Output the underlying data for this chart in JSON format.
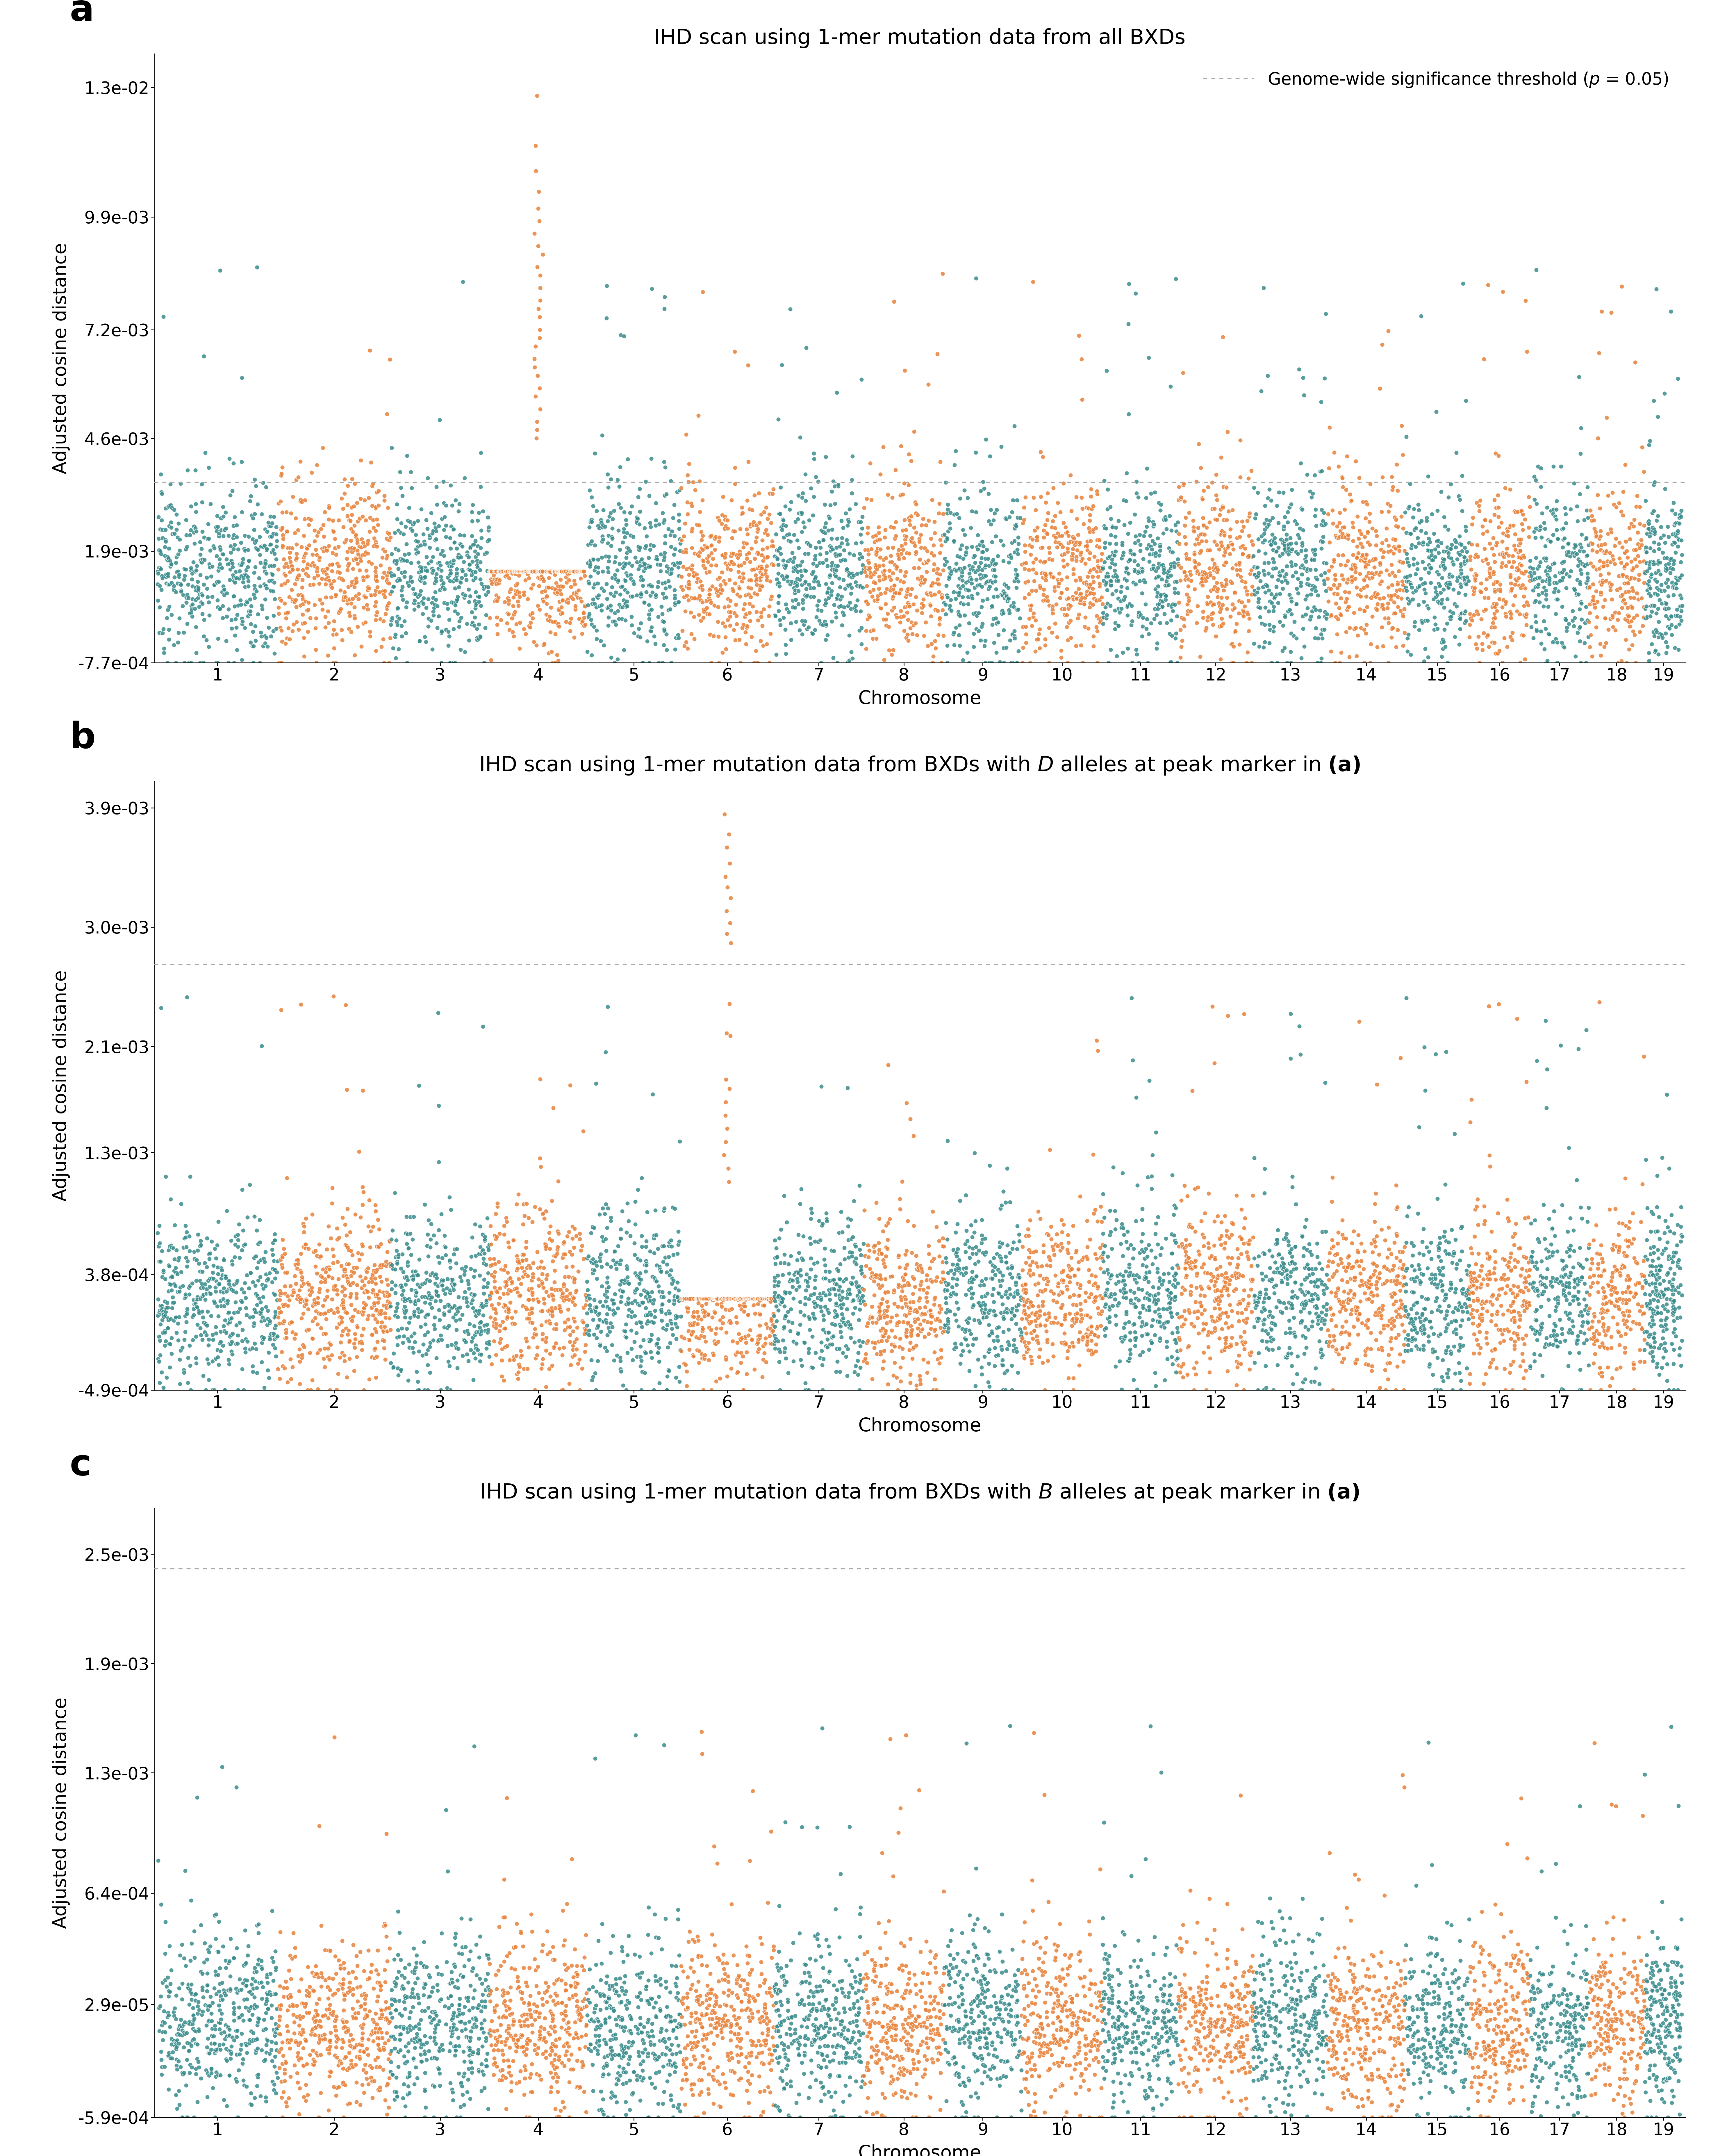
{
  "panels": [
    {
      "label": "a",
      "title": "IHD scan using 1-mer mutation data from all BXDs",
      "ylim": [
        -0.00077,
        0.0138
      ],
      "yticks": [
        -0.00077,
        0.0019,
        0.0046,
        0.0072,
        0.0099,
        0.013
      ],
      "ytick_labels": [
        "-7.7e-04",
        "1.9e-03",
        "4.6e-03",
        "7.2e-03",
        "9.9e-03",
        "1.3e-02"
      ],
      "threshold": 0.00355,
      "peak_chrom": 4,
      "peak_values": [
        0.0128,
        0.0116,
        0.011,
        0.0105,
        0.0101,
        0.0098,
        0.0095,
        0.0092,
        0.009,
        0.0087,
        0.0085,
        0.0082,
        0.0079,
        0.0077,
        0.0075,
        0.0072,
        0.007,
        0.0068,
        0.0065,
        0.0063,
        0.0061,
        0.0058,
        0.0056,
        0.0053,
        0.005,
        0.0048,
        0.0046
      ],
      "show_legend": true
    },
    {
      "label": "b",
      "title": "IHD scan using 1-mer mutation data from BXDs with $\\mathit{D}$ alleles at peak marker in $\\mathbf{(a)}$",
      "ylim": [
        -0.00049,
        0.0041
      ],
      "yticks": [
        -0.00049,
        0.00038,
        0.0013,
        0.0021,
        0.003,
        0.0039
      ],
      "ytick_labels": [
        "-4.9e-04",
        "3.8e-04",
        "1.3e-03",
        "2.1e-03",
        "3.0e-03",
        "3.9e-03"
      ],
      "threshold": 0.00272,
      "peak_chrom": 6,
      "peak_values": [
        0.00385,
        0.0037,
        0.0036,
        0.00348,
        0.00338,
        0.0033,
        0.00322,
        0.00312,
        0.00303,
        0.00295,
        0.00288,
        0.00242,
        0.0022,
        0.00218,
        0.00185,
        0.00178,
        0.00168,
        0.00158,
        0.00148,
        0.00138,
        0.00128,
        0.00118,
        0.00108
      ],
      "show_legend": false
    },
    {
      "label": "c",
      "title": "IHD scan using 1-mer mutation data from BXDs with $\\mathit{B}$ alleles at peak marker in $\\mathbf{(a)}$",
      "ylim": [
        -0.00059,
        0.00275
      ],
      "yticks": [
        -0.00059,
        2.9e-05,
        0.00064,
        0.0013,
        0.0019,
        0.0025
      ],
      "ytick_labels": [
        "-5.9e-04",
        "2.9e-05",
        "6.4e-04",
        "1.3e-03",
        "1.9e-03",
        "2.5e-03"
      ],
      "threshold": 0.00242,
      "peak_chrom": -1,
      "peak_values": [],
      "show_legend": false
    }
  ],
  "chromosomes": [
    1,
    2,
    3,
    4,
    5,
    6,
    7,
    8,
    9,
    10,
    11,
    12,
    13,
    14,
    15,
    16,
    17,
    18,
    19
  ],
  "chrom_sizes": [
    195,
    182,
    160,
    157,
    152,
    150,
    145,
    130,
    125,
    131,
    122,
    121,
    120,
    125,
    104,
    98,
    95,
    90,
    61
  ],
  "color_B": "#E8823A",
  "color_D": "#3B8C8C",
  "marker_size": 120,
  "marker_alpha": 0.85,
  "marker_edge_width": 1.0,
  "marker_edge_color": "white",
  "ylabel": "Adjusted cosine distance",
  "xlabel": "Chromosome",
  "threshold_color": "#aaaaaa",
  "threshold_linewidth": 2.5,
  "legend_label": "Genome-wide significance threshold ($p$ = 0.05)",
  "background_color": "white",
  "title_fontsize": 52,
  "label_fontsize": 46,
  "tick_fontsize": 42,
  "panel_label_fontsize": 90
}
